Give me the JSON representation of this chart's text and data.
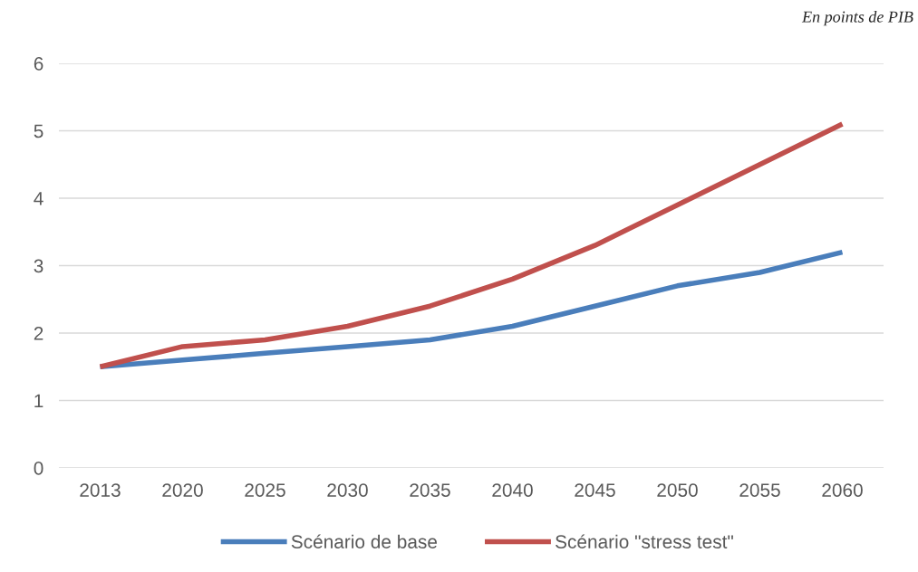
{
  "chart_data": {
    "type": "line",
    "categories": [
      "2013",
      "2020",
      "2025",
      "2030",
      "2035",
      "2040",
      "2045",
      "2050",
      "2055",
      "2060"
    ],
    "series": [
      {
        "name": "Scénario de base",
        "color": "#4a7ebb",
        "values": [
          1.5,
          1.6,
          1.7,
          1.8,
          1.9,
          2.1,
          2.4,
          2.7,
          2.9,
          3.2
        ]
      },
      {
        "name": "Scénario \"stress test\"",
        "color": "#c0504d",
        "values": [
          1.5,
          1.8,
          1.9,
          2.1,
          2.4,
          2.8,
          3.3,
          3.9,
          4.5,
          5.1
        ]
      }
    ],
    "ylim": [
      0,
      6
    ],
    "yticks": [
      0,
      1,
      2,
      3,
      4,
      5,
      6
    ],
    "grid": "y",
    "legend": "bottom",
    "marker": "none",
    "line_style": "solid",
    "annotations": [
      "En points de PIB"
    ]
  }
}
